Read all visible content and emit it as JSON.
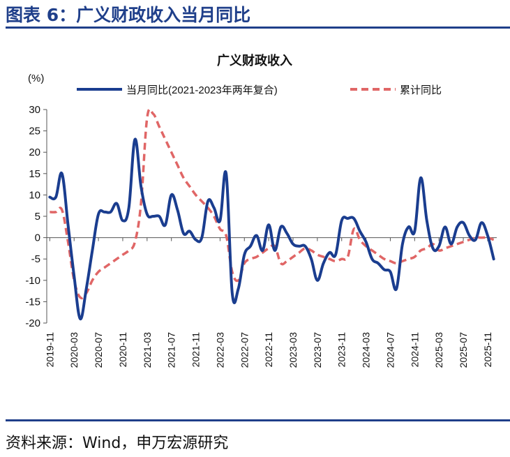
{
  "figure": {
    "title": "图表 6：广义财政收入当月同比",
    "source": "资料来源：Wind，申万宏源研究"
  },
  "chart_data": {
    "type": "line",
    "title": "广义财政收入",
    "ylabel": "(%)",
    "ylim": [
      -20,
      30
    ],
    "yticks": [
      30,
      25,
      20,
      15,
      10,
      5,
      0,
      -5,
      -10,
      -15,
      -20
    ],
    "x_start": "2019-11",
    "x_count": 74,
    "xtick_labels": [
      "2019-11",
      "2020-03",
      "2020-07",
      "2020-11",
      "2021-03",
      "2021-07",
      "2021-11",
      "2022-03",
      "2022-07",
      "2022-11",
      "2023-03",
      "2023-07",
      "2023-11",
      "2024-03",
      "2024-07",
      "2024-11",
      "2025-03",
      "2025-07",
      "2025-11"
    ],
    "legend": {
      "position": "top",
      "entries": [
        "当月同比(2021-2023年两年复合)",
        "累计同比"
      ]
    },
    "series": [
      {
        "name": "当月同比(2021-2023年两年复合)",
        "color": "#1a3d8f",
        "style": "solid",
        "values": [
          9.5,
          9.5,
          15,
          3,
          -9,
          -19,
          -12,
          -3,
          5.5,
          6.0,
          6.0,
          8.0,
          4.0,
          7.0,
          23,
          12,
          5.5,
          5.0,
          5.0,
          3.0,
          10,
          6.5,
          1.0,
          1.5,
          -0.5,
          0,
          8.5,
          7.0,
          4.0,
          15,
          -13,
          -12,
          -4,
          -2.0,
          0.5,
          -3.0,
          3.0,
          -3.0,
          2.5,
          1.0,
          -1.5,
          -2.0,
          -2.0,
          -5.0,
          -10,
          -6.0,
          -3.5,
          -4.0,
          4.0,
          4.5,
          4.5,
          1.5,
          -1.0,
          -5.0,
          -6.0,
          -7.5,
          -8.0,
          -12,
          -1.5,
          2.5,
          1.5,
          14,
          4.0,
          -2.5,
          -2.0,
          2.5,
          -1.5,
          2.5,
          3.5,
          0.5,
          -0.5,
          3.5,
          0.5,
          -5.0
        ]
      },
      {
        "name": "累计同比",
        "color": "#e06666",
        "style": "dashed",
        "values": [
          6.0,
          6.0,
          6.5,
          -1,
          -10,
          -14,
          -13,
          -10,
          -8,
          -7,
          -6,
          -5,
          -4,
          -3,
          -1,
          8,
          28,
          29,
          26,
          23,
          20,
          17,
          14,
          12,
          10,
          8.5,
          7.0,
          5.0,
          2.0,
          0.5,
          -8,
          -10,
          -6,
          -5,
          -4.5,
          -3.5,
          -2.5,
          -2.0,
          -6.0,
          -5.5,
          -4.5,
          -3.5,
          -2.5,
          -3.0,
          -4.0,
          -4.5,
          -5.0,
          -5.5,
          -5.0,
          -4.5,
          2.0,
          -0.5,
          -2.0,
          -3.0,
          -4.0,
          -5.0,
          -5.5,
          -6.0,
          -5.5,
          -5.0,
          -4.5,
          -3.0,
          -2.5,
          -1.5,
          -3.0,
          -2.5,
          -2.0,
          -1.5,
          -1.0,
          -0.5,
          0,
          0,
          0,
          -0.5
        ]
      }
    ]
  }
}
